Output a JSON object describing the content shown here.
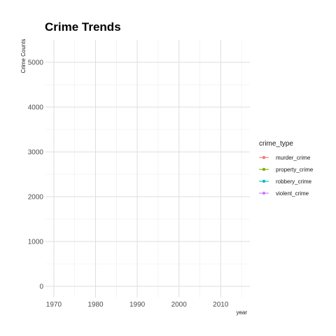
{
  "chart_data": {
    "type": "line",
    "title": "Crime Trends",
    "xlabel": "year",
    "ylabel": "Crime Counts",
    "xlim": [
      1968,
      2017
    ],
    "ylim": [
      -250,
      5500
    ],
    "x_ticks": [
      1970,
      1980,
      1990,
      2000,
      2010
    ],
    "x_minor_ticks": [
      1975,
      1985,
      1995,
      2005,
      2015
    ],
    "y_ticks": [
      0,
      1000,
      2000,
      3000,
      4000,
      5000
    ],
    "y_minor_ticks": [
      500,
      1500,
      2500,
      3500,
      4500
    ],
    "grid": true,
    "legend": {
      "title": "crime_type",
      "placement": "right",
      "entries": [
        {
          "label": "murder_crime",
          "color": "#F8766D"
        },
        {
          "label": "property_crime",
          "color": "#7CAE00"
        },
        {
          "label": "robbery_crime",
          "color": "#00BFC4"
        },
        {
          "label": "violent_crime",
          "color": "#C77CFF"
        }
      ]
    },
    "series": [
      {
        "name": "murder_crime",
        "color": "#F8766D",
        "x": [],
        "values": []
      },
      {
        "name": "property_crime",
        "color": "#7CAE00",
        "x": [],
        "values": []
      },
      {
        "name": "robbery_crime",
        "color": "#00BFC4",
        "x": [],
        "values": []
      },
      {
        "name": "violent_crime",
        "color": "#C77CFF",
        "x": [],
        "values": []
      }
    ]
  }
}
